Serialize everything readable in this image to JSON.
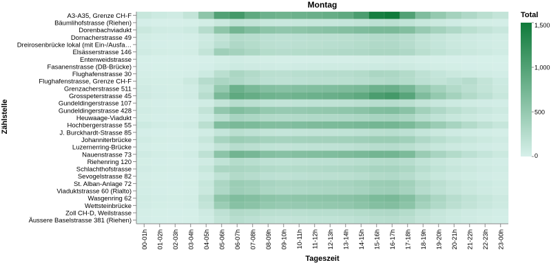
{
  "chart_data": {
    "type": "heatmap",
    "title": "Montag",
    "xlabel": "Tageszeit",
    "ylabel": "Zählstelle",
    "legend": {
      "title": "Total",
      "position": "right",
      "min": 0,
      "max": 1500,
      "ticks": [
        0,
        500,
        1000,
        1500
      ],
      "tick_labels": [
        "0",
        "500",
        "1,000",
        "1,500"
      ],
      "color_low": "#d7f0ea",
      "color_high": "#0f7a3a"
    },
    "x": [
      "00-01h",
      "01-02h",
      "02-03h",
      "03-04h",
      "04-05h",
      "05-06h",
      "06-07h",
      "07-08h",
      "08-09h",
      "09-10h",
      "10-11h",
      "11-12h",
      "12-13h",
      "13-14h",
      "14-15h",
      "15-16h",
      "16-17h",
      "17-18h",
      "18-19h",
      "19-20h",
      "20-21h",
      "21-22h",
      "22-23h",
      "23-00h"
    ],
    "y": [
      "A3-A35, Grenze CH-F",
      "Bäumlihofstrasse (Riehen)",
      "Dorenbachviadukt",
      "Dornacherstrasse 49",
      "Dreirosenbrücke lokal (mit Ein-/Ausfa…",
      "Elsässerstrasse 146",
      "Entenweidstrasse",
      "Fasanenstrasse (DB-Brücke)",
      "Flughafenstrasse 30",
      "Flughafenstrasse, Grenze CH-F",
      "Grenzacherstrasse 511",
      "Grosspeterstrasse 45",
      "Gundeldingerstrasse 107",
      "Gundeldingerstrasse 428",
      "Heuwaage-Viadukt",
      "Hochbergerstrasse 55",
      "J. Burckhardt-Strasse 85",
      "Johanniterbrücke",
      "Luzernerring-Brücke",
      "Nauenstrasse 73",
      "Riehenring 120",
      "Schlachthofstrasse",
      "Sevogelstrasse 82",
      "St. Alban-Anlage 72",
      "Viaduktstrasse 60 (Rialto)",
      "Wasgenring 62",
      "Wettsteinbrücke",
      "Zoll CH-D, Weilstrasse",
      "Äussere Baselstrasse 381 (Riehen)"
    ],
    "z": [
      [
        120,
        80,
        60,
        150,
        550,
        1000,
        1100,
        900,
        800,
        780,
        800,
        820,
        850,
        900,
        1050,
        1450,
        1500,
        1000,
        650,
        500,
        380,
        300,
        220,
        150
      ],
      [
        20,
        10,
        10,
        15,
        40,
        100,
        180,
        160,
        120,
        110,
        120,
        130,
        130,
        140,
        160,
        200,
        210,
        170,
        120,
        90,
        60,
        40,
        30,
        25
      ],
      [
        100,
        60,
        50,
        80,
        250,
        550,
        750,
        650,
        560,
        530,
        550,
        580,
        600,
        620,
        660,
        700,
        700,
        640,
        480,
        380,
        300,
        220,
        160,
        110
      ],
      [
        40,
        25,
        20,
        25,
        70,
        160,
        260,
        240,
        200,
        190,
        200,
        210,
        210,
        220,
        240,
        270,
        280,
        240,
        170,
        130,
        90,
        70,
        50,
        40
      ],
      [
        35,
        20,
        15,
        25,
        90,
        200,
        300,
        260,
        210,
        200,
        210,
        220,
        230,
        240,
        260,
        290,
        290,
        250,
        180,
        140,
        100,
        75,
        55,
        40
      ],
      [
        60,
        40,
        30,
        40,
        150,
        420,
        380,
        320,
        260,
        250,
        260,
        270,
        280,
        290,
        300,
        330,
        330,
        300,
        220,
        170,
        130,
        100,
        75,
        55
      ],
      [
        5,
        3,
        2,
        3,
        10,
        30,
        50,
        40,
        30,
        25,
        25,
        25,
        25,
        25,
        30,
        40,
        45,
        40,
        25,
        15,
        10,
        8,
        6,
        5
      ],
      [
        10,
        5,
        5,
        8,
        20,
        50,
        80,
        70,
        60,
        55,
        60,
        65,
        65,
        65,
        70,
        80,
        85,
        75,
        55,
        40,
        30,
        20,
        15,
        10
      ],
      [
        25,
        15,
        15,
        25,
        80,
        220,
        330,
        280,
        220,
        210,
        230,
        240,
        250,
        250,
        270,
        330,
        320,
        270,
        190,
        140,
        100,
        75,
        50,
        35
      ],
      [
        40,
        30,
        30,
        90,
        250,
        330,
        300,
        250,
        200,
        190,
        200,
        210,
        210,
        220,
        240,
        270,
        290,
        260,
        200,
        160,
        200,
        250,
        150,
        80
      ],
      [
        60,
        35,
        30,
        50,
        170,
        500,
        800,
        700,
        620,
        600,
        620,
        640,
        650,
        670,
        700,
        800,
        820,
        720,
        500,
        380,
        280,
        210,
        150,
        90
      ],
      [
        70,
        45,
        40,
        60,
        240,
        700,
        900,
        850,
        780,
        760,
        780,
        800,
        820,
        850,
        900,
        1050,
        1100,
        950,
        660,
        500,
        380,
        280,
        200,
        120
      ],
      [
        30,
        20,
        15,
        20,
        50,
        150,
        240,
        210,
        170,
        160,
        170,
        180,
        180,
        190,
        210,
        240,
        250,
        220,
        150,
        110,
        80,
        60,
        45,
        35
      ],
      [
        55,
        35,
        30,
        40,
        160,
        520,
        640,
        580,
        500,
        480,
        490,
        510,
        520,
        540,
        570,
        640,
        650,
        580,
        400,
        300,
        220,
        160,
        115,
        75
      ],
      [
        30,
        20,
        20,
        25,
        80,
        220,
        350,
        320,
        280,
        270,
        280,
        290,
        290,
        300,
        320,
        360,
        370,
        330,
        230,
        170,
        120,
        90,
        60,
        40
      ],
      [
        80,
        50,
        40,
        60,
        220,
        650,
        700,
        680,
        640,
        630,
        650,
        670,
        680,
        690,
        710,
        740,
        740,
        690,
        560,
        460,
        360,
        270,
        190,
        130
      ],
      [
        20,
        12,
        10,
        15,
        50,
        140,
        220,
        190,
        150,
        140,
        150,
        160,
        160,
        170,
        190,
        220,
        230,
        200,
        140,
        100,
        70,
        50,
        35,
        25
      ],
      [
        50,
        30,
        25,
        35,
        130,
        360,
        450,
        420,
        380,
        370,
        380,
        390,
        390,
        400,
        420,
        450,
        450,
        410,
        300,
        230,
        170,
        130,
        90,
        60
      ],
      [
        25,
        15,
        12,
        18,
        60,
        160,
        240,
        210,
        170,
        160,
        170,
        180,
        180,
        190,
        210,
        240,
        250,
        220,
        160,
        120,
        85,
        65,
        45,
        32
      ],
      [
        60,
        40,
        30,
        50,
        190,
        560,
        760,
        720,
        620,
        600,
        620,
        640,
        650,
        670,
        700,
        750,
        750,
        680,
        460,
        350,
        270,
        200,
        140,
        90
      ],
      [
        30,
        20,
        15,
        20,
        60,
        170,
        260,
        230,
        190,
        180,
        190,
        200,
        200,
        210,
        230,
        260,
        270,
        240,
        170,
        130,
        90,
        70,
        50,
        38
      ],
      [
        45,
        30,
        25,
        35,
        120,
        330,
        340,
        320,
        280,
        260,
        270,
        280,
        290,
        300,
        320,
        360,
        360,
        320,
        230,
        170,
        130,
        100,
        70,
        50
      ],
      [
        25,
        15,
        12,
        18,
        60,
        180,
        280,
        250,
        200,
        190,
        200,
        210,
        210,
        220,
        240,
        280,
        290,
        250,
        170,
        120,
        85,
        65,
        45,
        32
      ],
      [
        40,
        25,
        20,
        30,
        120,
        330,
        450,
        420,
        350,
        330,
        340,
        350,
        360,
        370,
        400,
        450,
        460,
        400,
        280,
        210,
        150,
        115,
        80,
        55
      ],
      [
        35,
        20,
        18,
        25,
        100,
        310,
        430,
        400,
        320,
        300,
        310,
        320,
        330,
        340,
        370,
        420,
        430,
        370,
        250,
        190,
        135,
        100,
        70,
        48
      ],
      [
        55,
        35,
        30,
        40,
        190,
        550,
        650,
        620,
        560,
        540,
        550,
        560,
        570,
        580,
        610,
        680,
        700,
        620,
        440,
        330,
        240,
        180,
        130,
        85
      ],
      [
        45,
        30,
        25,
        35,
        150,
        450,
        600,
        570,
        500,
        480,
        490,
        500,
        510,
        520,
        560,
        620,
        630,
        560,
        380,
        290,
        210,
        160,
        115,
        75
      ],
      [
        25,
        15,
        12,
        18,
        70,
        190,
        280,
        260,
        220,
        210,
        220,
        230,
        230,
        240,
        260,
        290,
        300,
        260,
        180,
        130,
        90,
        70,
        50,
        35
      ],
      [
        20,
        12,
        10,
        15,
        50,
        150,
        230,
        200,
        160,
        150,
        160,
        170,
        170,
        180,
        200,
        230,
        240,
        210,
        150,
        110,
        80,
        60,
        40,
        28
      ]
    ]
  }
}
